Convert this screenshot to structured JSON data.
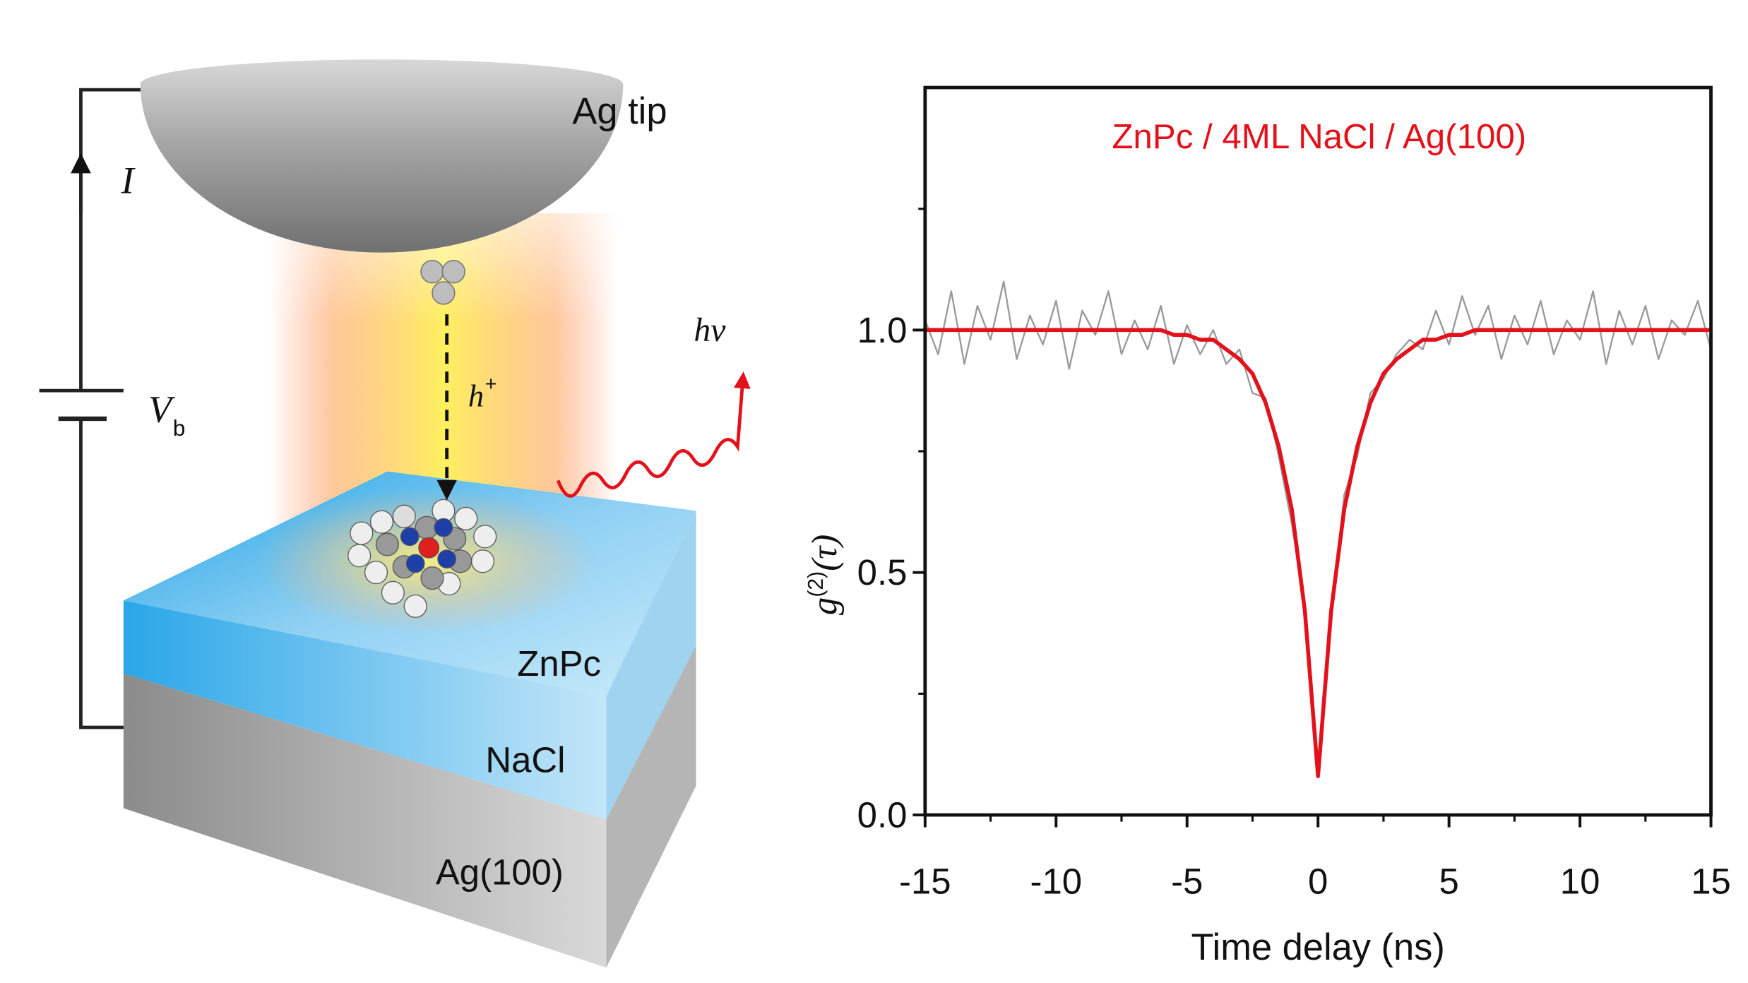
{
  "diagram": {
    "labels": {
      "tip": "Ag tip",
      "current": "I",
      "voltage": "V",
      "voltage_sub": "b",
      "photon": "hν",
      "hole": "h",
      "hole_sup": "+",
      "layer_top": "ZnPc",
      "layer_middle": "NaCl",
      "layer_bottom": "Ag(100)"
    }
  },
  "chart_data": {
    "type": "line",
    "title": "ZnPc / 4ML NaCl / Ag(100)",
    "x_label": "Time delay (ns)",
    "y_label": {
      "symbol": "g",
      "superscript": "(2)",
      "argument": "(τ)"
    },
    "x": [
      -15,
      -14.5,
      -14,
      -13.5,
      -13,
      -12.5,
      -12,
      -11.5,
      -11,
      -10.5,
      -10,
      -9.5,
      -9,
      -8.5,
      -8,
      -7.5,
      -7,
      -6.5,
      -6,
      -5.5,
      -5,
      -4.5,
      -4,
      -3.5,
      -3,
      -2.5,
      -2,
      -1.5,
      -1,
      -0.5,
      0,
      0.5,
      1,
      1.5,
      2,
      2.5,
      3,
      3.5,
      4,
      4.5,
      5,
      5.5,
      6,
      6.5,
      7,
      7.5,
      8,
      8.5,
      9,
      9.5,
      10,
      10.5,
      11,
      11.5,
      12,
      12.5,
      13,
      13.5,
      14,
      14.5,
      15
    ],
    "series": [
      {
        "color": "#9a9a9a",
        "values": [
          1.02,
          0.95,
          1.08,
          0.93,
          1.05,
          0.98,
          1.1,
          0.94,
          1.03,
          0.97,
          1.06,
          0.92,
          1.04,
          0.99,
          1.08,
          0.95,
          1.02,
          0.96,
          1.05,
          0.93,
          1.01,
          0.95,
          1.0,
          0.93,
          0.96,
          0.87,
          0.86,
          0.74,
          0.6,
          0.43,
          0.08,
          0.4,
          0.66,
          0.74,
          0.87,
          0.9,
          0.95,
          0.98,
          0.96,
          1.04,
          0.97,
          1.07,
          0.99,
          1.05,
          0.94,
          1.03,
          0.97,
          1.06,
          0.95,
          1.02,
          0.98,
          1.08,
          0.93,
          1.04,
          0.97,
          1.05,
          0.94,
          1.02,
          0.99,
          1.06,
          0.96
        ]
      },
      {
        "color": "#e3111b",
        "values": [
          1,
          1,
          1,
          1,
          1,
          1,
          1,
          1,
          1,
          1,
          1,
          1,
          1,
          1,
          1,
          1,
          1,
          1,
          1,
          0.99,
          0.99,
          0.98,
          0.98,
          0.96,
          0.94,
          0.91,
          0.85,
          0.76,
          0.63,
          0.42,
          0.08,
          0.42,
          0.63,
          0.76,
          0.85,
          0.91,
          0.94,
          0.96,
          0.98,
          0.98,
          0.99,
          0.99,
          1,
          1,
          1,
          1,
          1,
          1,
          1,
          1,
          1,
          1,
          1,
          1,
          1,
          1,
          1,
          1,
          1,
          1,
          1
        ]
      }
    ],
    "xlim": [
      -15,
      15
    ],
    "xticks": [
      -15,
      -10,
      -5,
      0,
      5,
      10,
      15
    ],
    "ylim": [
      0,
      1.5
    ],
    "yticks": [
      {
        "value": 0,
        "label": "0.0"
      },
      {
        "value": 0.5,
        "label": "0.5"
      },
      {
        "value": 1,
        "label": "1.0"
      }
    ]
  }
}
